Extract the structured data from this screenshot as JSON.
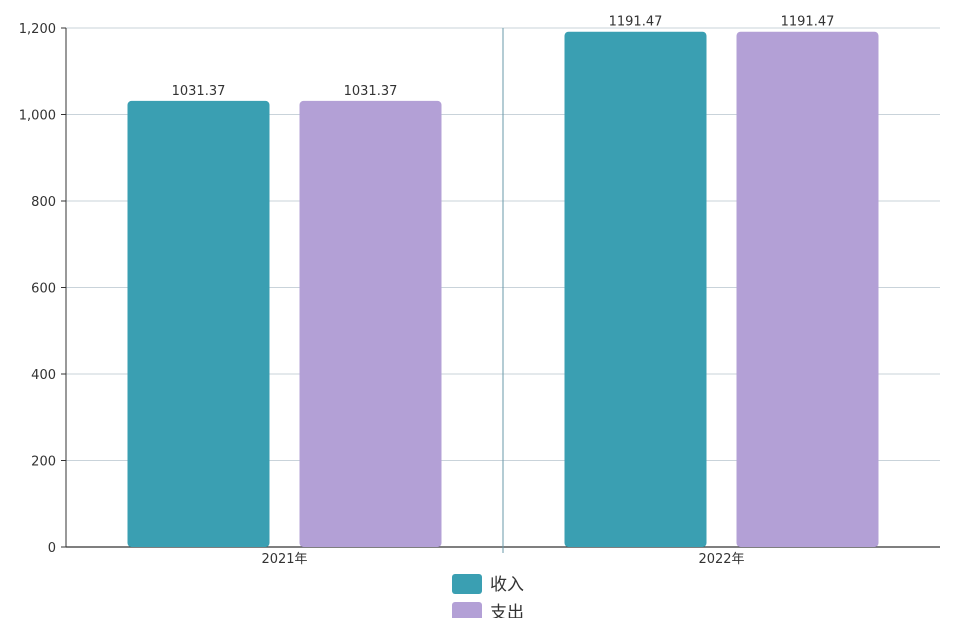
{
  "chart_data": {
    "type": "bar",
    "title": "",
    "xlabel": "",
    "ylabel": "",
    "categories": [
      "2021年",
      "2022年"
    ],
    "series": [
      {
        "name": "收入",
        "values": [
          1031.37,
          1191.47
        ],
        "color": "#3a9fb2"
      },
      {
        "name": "支出",
        "values": [
          1031.37,
          1191.47
        ],
        "color": "#b3a0d6"
      }
    ],
    "data_labels": [
      [
        "1031.37",
        "1191.47"
      ],
      [
        "1031.37",
        "1191.47"
      ]
    ],
    "yticks": [
      "0",
      "200",
      "400",
      "600",
      "800",
      "1,000",
      "1,200"
    ],
    "ytick_values": [
      0,
      200,
      400,
      600,
      800,
      1000,
      1200
    ],
    "ylim": [
      0,
      1200
    ],
    "grid": true,
    "legend_position": "bottom-center"
  }
}
